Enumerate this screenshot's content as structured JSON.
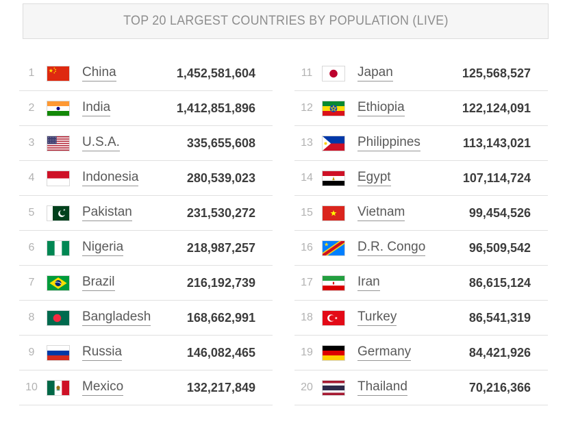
{
  "header": {
    "title": "TOP 20 LARGEST COUNTRIES BY POPULATION (LIVE)"
  },
  "colors": {
    "header_bg": "#f6f6f6",
    "header_border": "#dcdcdc",
    "header_text": "#8e8e8e",
    "rank_text": "#b2b2b2",
    "country_link_text": "#595959",
    "population_text": "#3c3c3c",
    "row_divider": "#e0e0e0",
    "flag_border": "#d8d8d8"
  },
  "table": {
    "left_column_ranks": "1-10",
    "right_column_ranks": "11-20",
    "rows": [
      {
        "rank": "1",
        "country": "China",
        "flag_icon": "china-flag-icon",
        "population": "1,452,581,604"
      },
      {
        "rank": "2",
        "country": "India",
        "flag_icon": "india-flag-icon",
        "population": "1,412,851,896"
      },
      {
        "rank": "3",
        "country": "U.S.A.",
        "flag_icon": "usa-flag-icon",
        "population": "335,655,608"
      },
      {
        "rank": "4",
        "country": "Indonesia",
        "flag_icon": "indonesia-flag-icon",
        "population": "280,539,023"
      },
      {
        "rank": "5",
        "country": "Pakistan",
        "flag_icon": "pakistan-flag-icon",
        "population": "231,530,272"
      },
      {
        "rank": "6",
        "country": "Nigeria",
        "flag_icon": "nigeria-flag-icon",
        "population": "218,987,257"
      },
      {
        "rank": "7",
        "country": "Brazil",
        "flag_icon": "brazil-flag-icon",
        "population": "216,192,739"
      },
      {
        "rank": "8",
        "country": "Bangladesh",
        "flag_icon": "bangladesh-flag-icon",
        "population": "168,662,991"
      },
      {
        "rank": "9",
        "country": "Russia",
        "flag_icon": "russia-flag-icon",
        "population": "146,082,465"
      },
      {
        "rank": "10",
        "country": "Mexico",
        "flag_icon": "mexico-flag-icon",
        "population": "132,217,849"
      },
      {
        "rank": "11",
        "country": "Japan",
        "flag_icon": "japan-flag-icon",
        "population": "125,568,527"
      },
      {
        "rank": "12",
        "country": "Ethiopia",
        "flag_icon": "ethiopia-flag-icon",
        "population": "122,124,091"
      },
      {
        "rank": "13",
        "country": "Philippines",
        "flag_icon": "philippines-flag-icon",
        "population": "113,143,021"
      },
      {
        "rank": "14",
        "country": "Egypt",
        "flag_icon": "egypt-flag-icon",
        "population": "107,114,724"
      },
      {
        "rank": "15",
        "country": "Vietnam",
        "flag_icon": "vietnam-flag-icon",
        "population": "99,454,526"
      },
      {
        "rank": "16",
        "country": "D.R. Congo",
        "flag_icon": "dr-congo-flag-icon",
        "population": "96,509,542"
      },
      {
        "rank": "17",
        "country": "Iran",
        "flag_icon": "iran-flag-icon",
        "population": "86,615,124"
      },
      {
        "rank": "18",
        "country": "Turkey",
        "flag_icon": "turkey-flag-icon",
        "population": "86,541,319"
      },
      {
        "rank": "19",
        "country": "Germany",
        "flag_icon": "germany-flag-icon",
        "population": "84,421,926"
      },
      {
        "rank": "20",
        "country": "Thailand",
        "flag_icon": "thailand-flag-icon",
        "population": "70,216,366"
      }
    ]
  }
}
